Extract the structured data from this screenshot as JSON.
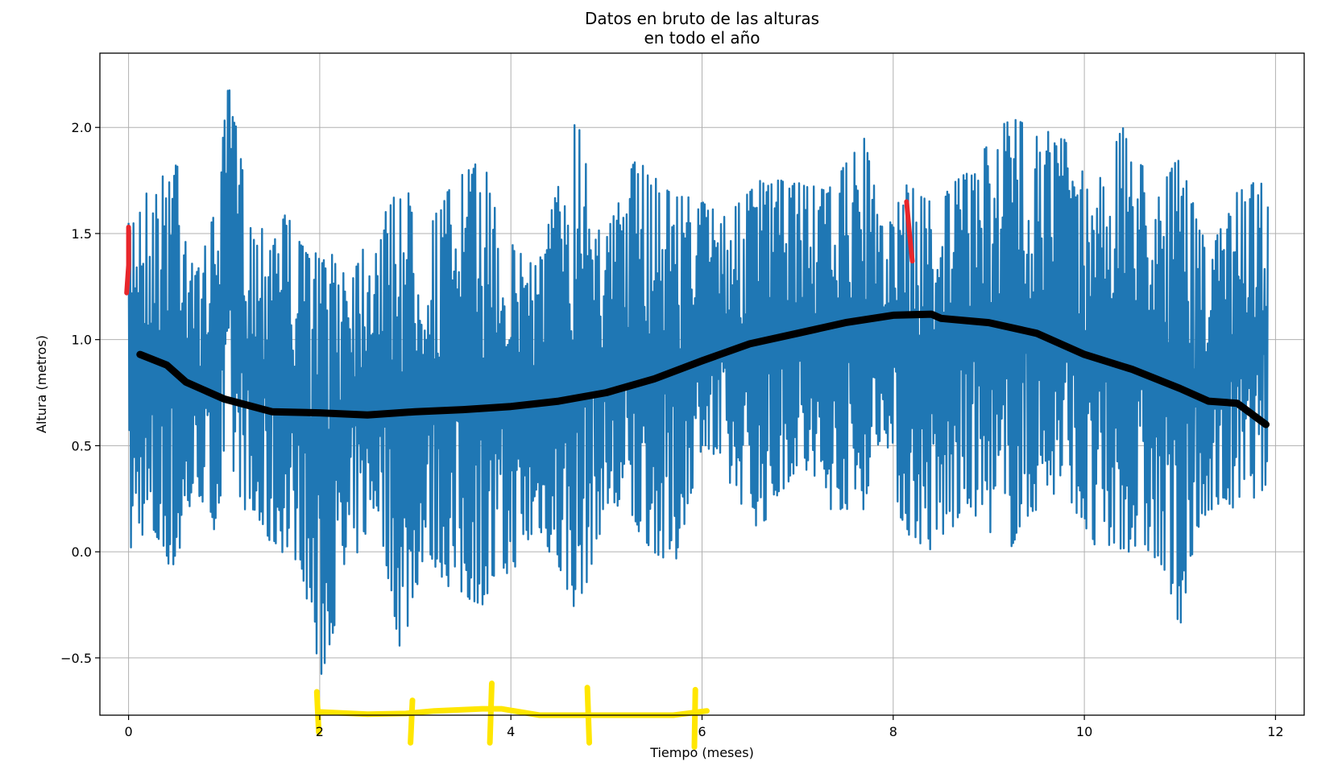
{
  "chart_data": {
    "type": "line",
    "title": "Datos en bruto de las alturas\nen todo el año",
    "xlabel": "Tiempo (meses)",
    "ylabel": "Altura (metros)",
    "xlim": [
      -0.3,
      12.3
    ],
    "ylim": [
      -0.77,
      2.35
    ],
    "grid": true,
    "x_ticks": [
      0,
      2,
      4,
      6,
      8,
      10,
      12
    ],
    "y_ticks": [
      -0.5,
      0.0,
      0.5,
      1.0,
      1.5,
      2.0
    ],
    "x_tick_labels": [
      "0",
      "2",
      "4",
      "6",
      "8",
      "10",
      "12"
    ],
    "y_tick_labels": [
      "−0.5",
      "0.0",
      "0.5",
      "1.0",
      "1.5",
      "2.0"
    ],
    "colors": {
      "series": "#1f77b4",
      "trend": "#000000",
      "red_marks": "#e8262b",
      "yellow_marks": "#ffe600"
    },
    "series": [
      {
        "x_range": [
          0,
          11.92
        ],
        "envelope": [
          {
            "x": 0.0,
            "min": -0.05,
            "max": 1.55
          },
          {
            "x": 0.1,
            "min": 0.1,
            "max": 1.7
          },
          {
            "x": 0.3,
            "min": 0.0,
            "max": 1.7
          },
          {
            "x": 0.5,
            "min": -0.1,
            "max": 1.95
          },
          {
            "x": 0.7,
            "min": 0.3,
            "max": 1.3
          },
          {
            "x": 0.9,
            "min": 0.1,
            "max": 1.6
          },
          {
            "x": 1.05,
            "min": 0.4,
            "max": 2.22
          },
          {
            "x": 1.3,
            "min": 0.1,
            "max": 1.5
          },
          {
            "x": 1.6,
            "min": 0.0,
            "max": 1.65
          },
          {
            "x": 1.8,
            "min": -0.05,
            "max": 1.45
          },
          {
            "x": 2.0,
            "min": -0.62,
            "max": 1.4
          },
          {
            "x": 2.3,
            "min": -0.1,
            "max": 1.4
          },
          {
            "x": 2.6,
            "min": 0.2,
            "max": 1.5
          },
          {
            "x": 2.85,
            "min": -0.5,
            "max": 1.78
          },
          {
            "x": 3.1,
            "min": 0.0,
            "max": 1.5
          },
          {
            "x": 3.4,
            "min": -0.2,
            "max": 1.75
          },
          {
            "x": 3.7,
            "min": -0.25,
            "max": 1.85
          },
          {
            "x": 4.0,
            "min": -0.1,
            "max": 1.45
          },
          {
            "x": 4.3,
            "min": 0.1,
            "max": 1.4
          },
          {
            "x": 4.7,
            "min": -0.3,
            "max": 2.08
          },
          {
            "x": 5.0,
            "min": 0.2,
            "max": 1.5
          },
          {
            "x": 5.3,
            "min": 0.1,
            "max": 1.85
          },
          {
            "x": 5.7,
            "min": -0.1,
            "max": 1.7
          },
          {
            "x": 6.0,
            "min": 0.5,
            "max": 1.65
          },
          {
            "x": 6.3,
            "min": 0.3,
            "max": 1.6
          },
          {
            "x": 6.6,
            "min": 0.1,
            "max": 1.75
          },
          {
            "x": 7.0,
            "min": 0.4,
            "max": 1.75
          },
          {
            "x": 7.3,
            "min": 0.2,
            "max": 1.7
          },
          {
            "x": 7.7,
            "min": 0.2,
            "max": 1.95
          },
          {
            "x": 7.9,
            "min": 0.6,
            "max": 1.5
          },
          {
            "x": 8.1,
            "min": 0.1,
            "max": 1.75
          },
          {
            "x": 8.4,
            "min": 0.0,
            "max": 1.65
          },
          {
            "x": 8.8,
            "min": 0.2,
            "max": 1.8
          },
          {
            "x": 9.2,
            "min": 0.0,
            "max": 2.05
          },
          {
            "x": 9.5,
            "min": 0.2,
            "max": 2.0
          },
          {
            "x": 9.8,
            "min": 0.3,
            "max": 1.95
          },
          {
            "x": 10.1,
            "min": 0.0,
            "max": 1.7
          },
          {
            "x": 10.4,
            "min": 0.0,
            "max": 2.0
          },
          {
            "x": 10.7,
            "min": 0.0,
            "max": 1.75
          },
          {
            "x": 11.0,
            "min": -0.35,
            "max": 1.85
          },
          {
            "x": 11.3,
            "min": 0.2,
            "max": 1.4
          },
          {
            "x": 11.6,
            "min": 0.2,
            "max": 1.7
          },
          {
            "x": 11.92,
            "min": 0.3,
            "max": 1.78
          }
        ]
      }
    ],
    "annotations": {
      "trend": [
        {
          "x": 0.12,
          "y": 0.93
        },
        {
          "x": 0.4,
          "y": 0.88
        },
        {
          "x": 0.6,
          "y": 0.8
        },
        {
          "x": 1.0,
          "y": 0.72
        },
        {
          "x": 1.5,
          "y": 0.66
        },
        {
          "x": 2.0,
          "y": 0.655
        },
        {
          "x": 2.5,
          "y": 0.645
        },
        {
          "x": 3.0,
          "y": 0.66
        },
        {
          "x": 3.5,
          "y": 0.67
        },
        {
          "x": 4.0,
          "y": 0.685
        },
        {
          "x": 4.5,
          "y": 0.71
        },
        {
          "x": 5.0,
          "y": 0.75
        },
        {
          "x": 5.5,
          "y": 0.815
        },
        {
          "x": 6.0,
          "y": 0.9
        },
        {
          "x": 6.5,
          "y": 0.98
        },
        {
          "x": 7.0,
          "y": 1.03
        },
        {
          "x": 7.5,
          "y": 1.08
        },
        {
          "x": 8.0,
          "y": 1.115
        },
        {
          "x": 8.4,
          "y": 1.12
        },
        {
          "x": 8.5,
          "y": 1.1
        },
        {
          "x": 9.0,
          "y": 1.08
        },
        {
          "x": 9.5,
          "y": 1.03
        },
        {
          "x": 10.0,
          "y": 0.93
        },
        {
          "x": 10.5,
          "y": 0.86
        },
        {
          "x": 11.0,
          "y": 0.77
        },
        {
          "x": 11.3,
          "y": 0.71
        },
        {
          "x": 11.6,
          "y": 0.7
        },
        {
          "x": 11.9,
          "y": 0.6
        }
      ],
      "red_marks": [
        [
          {
            "x": -0.02,
            "y": 1.22
          },
          {
            "x": 0.0,
            "y": 1.35
          },
          {
            "x": 0.0,
            "y": 1.53
          }
        ],
        [
          {
            "x": 8.14,
            "y": 1.65
          },
          {
            "x": 8.17,
            "y": 1.5
          },
          {
            "x": 8.2,
            "y": 1.37
          }
        ]
      ],
      "yellow_marks": [
        [
          {
            "x": 2.0,
            "y": -0.755
          },
          {
            "x": 2.5,
            "y": -0.765
          },
          {
            "x": 2.9,
            "y": -0.762
          },
          {
            "x": 3.2,
            "y": -0.75
          },
          {
            "x": 3.7,
            "y": -0.74
          },
          {
            "x": 3.9,
            "y": -0.74
          },
          {
            "x": 4.3,
            "y": -0.77
          },
          {
            "x": 5.0,
            "y": -0.77
          },
          {
            "x": 5.7,
            "y": -0.77
          },
          {
            "x": 6.05,
            "y": -0.75
          }
        ],
        [
          {
            "x": 1.97,
            "y": -0.66
          },
          {
            "x": 1.99,
            "y": -0.85
          }
        ],
        [
          {
            "x": 2.97,
            "y": -0.7
          },
          {
            "x": 2.95,
            "y": -0.9
          }
        ],
        [
          {
            "x": 3.8,
            "y": -0.62
          },
          {
            "x": 3.78,
            "y": -0.9
          }
        ],
        [
          {
            "x": 4.8,
            "y": -0.64
          },
          {
            "x": 4.82,
            "y": -0.9
          }
        ],
        [
          {
            "x": 5.93,
            "y": -0.65
          },
          {
            "x": 5.92,
            "y": -0.92
          }
        ]
      ]
    }
  }
}
